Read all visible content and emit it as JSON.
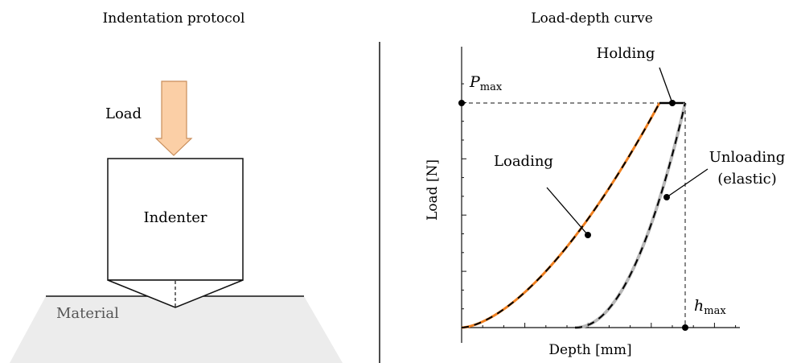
{
  "left_panel": {
    "title": "Indentation protocol",
    "load_label": "Load",
    "indenter_label": "Indenter",
    "material_label": "Material",
    "colors": {
      "arrow_fill": "#fbcfa6",
      "arrow_stroke": "#c98e5b",
      "material_fill": "#ececec"
    }
  },
  "right_panel": {
    "title": "Load-depth curve",
    "xlabel": "Depth [mm]",
    "ylabel": "Load [N]",
    "pmax_main": "P",
    "pmax_sub": "max",
    "hmax_main": "h",
    "hmax_sub": "max",
    "annotations": {
      "holding": "Holding",
      "loading": "Loading",
      "unloading_line1": "Unloading",
      "unloading_line2": "(elastic)"
    },
    "colors": {
      "loading": "#f07f1e",
      "unloading": "#b8b8b8",
      "dash": "#000000"
    }
  }
}
